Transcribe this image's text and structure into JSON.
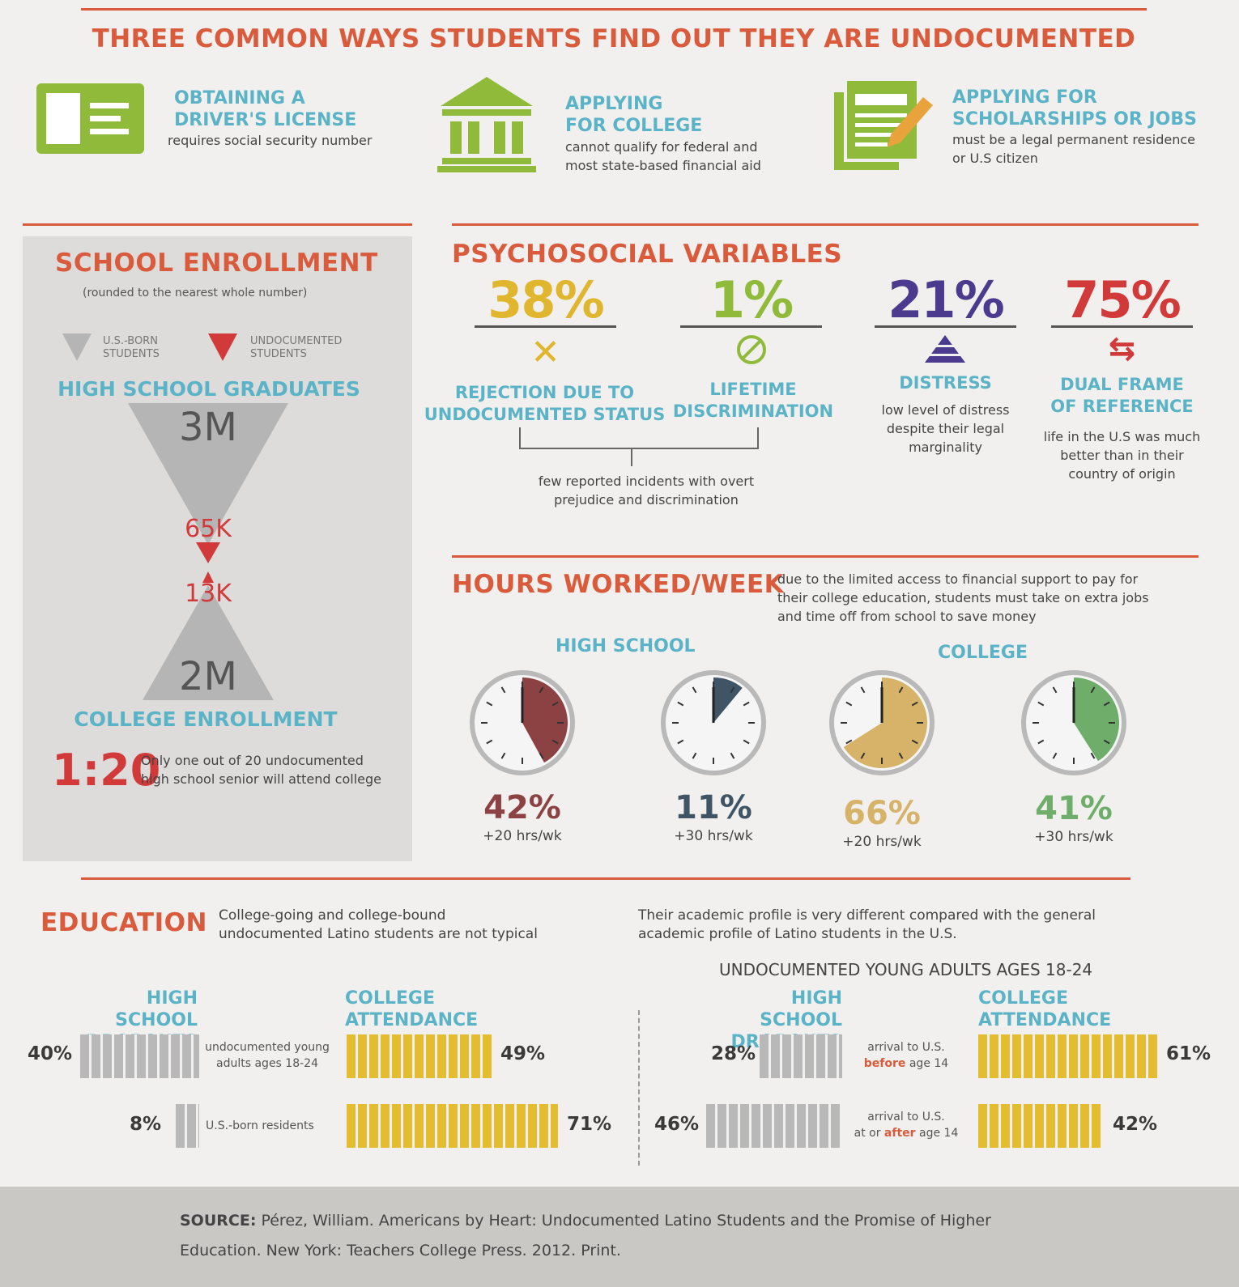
{
  "title": "THREE COMMON WAYS STUDENTS FIND OUT THEY ARE UNDOCUMENTED",
  "ways": [
    {
      "icon": "id-card-icon",
      "heading1": "OBTAINING A",
      "heading2": "DRIVER'S LICENSE",
      "desc1": "requires social security number",
      "desc2": ""
    },
    {
      "icon": "bank-building-icon",
      "heading1": "APPLYING",
      "heading2": "FOR COLLEGE",
      "desc1": "cannot qualify for federal and",
      "desc2": "most state-based financial aid"
    },
    {
      "icon": "document-pencil-icon",
      "heading1": "APPLYING FOR",
      "heading2": "SCHOLARSHIPS OR JOBS",
      "desc1": "must be a legal permanent residence",
      "desc2": "or U.S citizen"
    }
  ],
  "enrollment": {
    "title": "SCHOOL ENROLLMENT",
    "note": "(rounded to the nearest whole number)",
    "legend_us1": "U.S.-BORN",
    "legend_us2": "STUDENTS",
    "legend_und1": "UNDOCUMENTED",
    "legend_und2": "STUDENTS",
    "hs_label": "HIGH SCHOOL GRADUATES",
    "us_hs": "3M",
    "und_hs": "65K",
    "und_college": "13K",
    "us_college": "2M",
    "college_label": "COLLEGE ENROLLMENT",
    "ratio": "1:20",
    "ratio_desc1": "Only one out of 20 undocumented",
    "ratio_desc2": "high school senior will attend college"
  },
  "psychosocial": {
    "title": "PSYCHOSOCIAL VARIABLES",
    "items": [
      {
        "pct": "38%",
        "color": "#e0b62e",
        "icon": "x-icon",
        "label1": "REJECTION DUE TO",
        "label2": "UNDOCUMENTED STATUS"
      },
      {
        "pct": "1%",
        "color": "#8fba3a",
        "icon": "no-sign-icon",
        "label1": "LIFETIME",
        "label2": "DISCRIMINATION"
      },
      {
        "pct": "21%",
        "color": "#4b3a8e",
        "icon": "pyramid-icon",
        "label1": "DISTRESS",
        "label2": "",
        "desc1": "low level of distress",
        "desc2": "despite their legal",
        "desc3": "marginality"
      },
      {
        "pct": "75%",
        "color": "#d23a3a",
        "icon": "two-way-arrow-icon",
        "label1": "DUAL FRAME",
        "label2": "OF REFERENCE",
        "desc1": "life in the U.S was much",
        "desc2": "better than in their",
        "desc3": "country of origin"
      }
    ],
    "shared_desc1": "few reported incidents with overt",
    "shared_desc2": "prejudice and discrimination"
  },
  "hours": {
    "title": "HOURS WORKED/WEEK",
    "desc1": "due to the limited access to financial support to pay for",
    "desc2": "their college education, students must take on extra jobs",
    "desc3": "and time off from school to save money",
    "hs_label": "HIGH SCHOOL",
    "college_label": "COLLEGE",
    "clocks": [
      {
        "pct": "42%",
        "value": 42,
        "sub": "+20 hrs/wk",
        "color": "#8c4142"
      },
      {
        "pct": "11%",
        "value": 11,
        "sub": "+30 hrs/wk",
        "color": "#3f5566"
      },
      {
        "pct": "66%",
        "value": 66,
        "sub": "+20 hrs/wk",
        "color": "#d7b36a"
      },
      {
        "pct": "41%",
        "value": 41,
        "sub": "+30 hrs/wk",
        "color": "#6fae6a"
      }
    ]
  },
  "education": {
    "title": "EDUCATION",
    "desc1": "College-going and college-bound",
    "desc2": "undocumented Latino students are not typical",
    "desc_right1": "Their academic profile is very different compared with the general",
    "desc_right2": "academic profile of Latino students in the U.S.",
    "right_heading": "UNDOCUMENTED YOUNG ADULTS AGES 18-24",
    "dropouts1": "HIGH SCHOOL",
    "dropouts2": "DROPOUTS",
    "attendance1": "COLLEGE",
    "attendance2": "ATTENDANCE",
    "left_rows": [
      {
        "label1": "undocumented young",
        "label2": "adults ages 18-24",
        "dropout": "40%",
        "dropout_value": 40,
        "attend": "49%",
        "attend_value": 49
      },
      {
        "label1": "U.S.-born residents",
        "label2": "",
        "dropout": "8%",
        "dropout_value": 8,
        "attend": "71%",
        "attend_value": 71
      }
    ],
    "right_rows": [
      {
        "label1": "arrival to U.S.",
        "label_bold": "before",
        "label_rest": " age 14",
        "label_prefix": "",
        "dropout": "28%",
        "dropout_value": 28,
        "attend": "61%",
        "attend_value": 61
      },
      {
        "label1": "arrival to U.S.",
        "label_bold": "after",
        "label_rest": " age 14",
        "label_prefix": "at or ",
        "dropout": "46%",
        "dropout_value": 46,
        "attend": "42%",
        "attend_value": 42
      }
    ]
  },
  "source": {
    "label": "SOURCE:",
    "text1": " Pérez, William. Americans by Heart: Undocumented Latino Students and the Promise of Higher",
    "text2": "Education. New York: Teachers College Press. 2012. Print."
  }
}
